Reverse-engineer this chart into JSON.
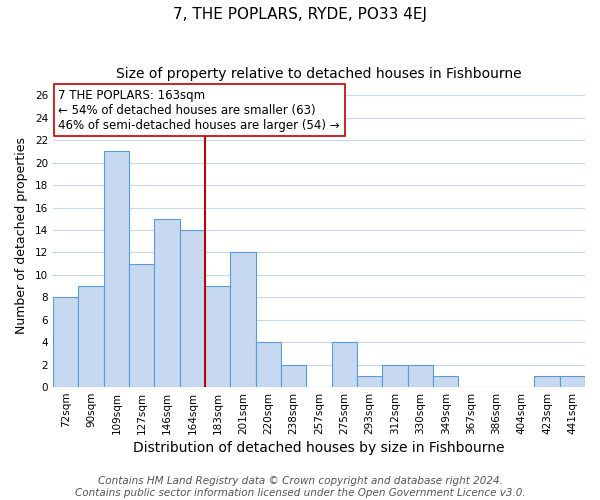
{
  "title": "7, THE POPLARS, RYDE, PO33 4EJ",
  "subtitle": "Size of property relative to detached houses in Fishbourne",
  "xlabel": "Distribution of detached houses by size in Fishbourne",
  "ylabel": "Number of detached properties",
  "footer_line1": "Contains HM Land Registry data © Crown copyright and database right 2024.",
  "footer_line2": "Contains public sector information licensed under the Open Government Licence v3.0.",
  "annotation_title": "7 THE POPLARS: 163sqm",
  "annotation_line1": "← 54% of detached houses are smaller (63)",
  "annotation_line2": "46% of semi-detached houses are larger (54) →",
  "bar_labels": [
    "72sqm",
    "90sqm",
    "109sqm",
    "127sqm",
    "146sqm",
    "164sqm",
    "183sqm",
    "201sqm",
    "220sqm",
    "238sqm",
    "257sqm",
    "275sqm",
    "293sqm",
    "312sqm",
    "330sqm",
    "349sqm",
    "367sqm",
    "386sqm",
    "404sqm",
    "423sqm",
    "441sqm"
  ],
  "bar_values": [
    8,
    9,
    21,
    11,
    15,
    14,
    9,
    12,
    4,
    2,
    0,
    4,
    1,
    2,
    2,
    1,
    0,
    0,
    0,
    1,
    1
  ],
  "bar_color": "#c6d9f0",
  "bar_edge_color": "#5b9bd5",
  "reference_line_color": "#c00000",
  "ylim": [
    0,
    27
  ],
  "yticks": [
    0,
    2,
    4,
    6,
    8,
    10,
    12,
    14,
    16,
    18,
    20,
    22,
    24,
    26
  ],
  "bg_color": "#ffffff",
  "grid_color": "#c8d8ea",
  "annotation_box_edge": "#c00000",
  "title_fontsize": 11,
  "subtitle_fontsize": 10,
  "xlabel_fontsize": 10,
  "ylabel_fontsize": 9,
  "tick_fontsize": 7.5,
  "footer_fontsize": 7.5
}
